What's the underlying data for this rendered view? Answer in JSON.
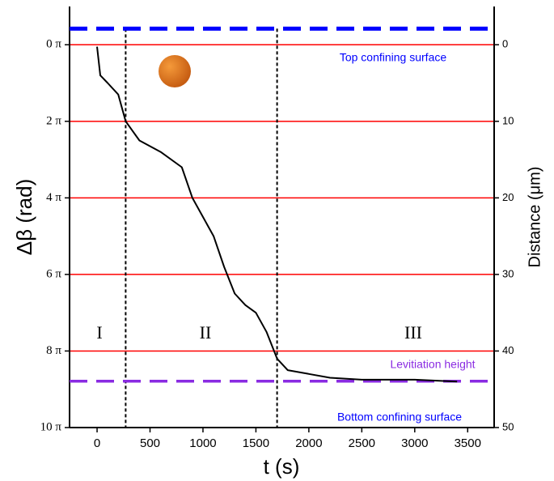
{
  "chart_data": {
    "type": "line",
    "x_label": "t (s)",
    "y_label": "Δβ (rad)",
    "y2_label": "Distance (μm)",
    "xlim": [
      -260,
      3750
    ],
    "xticks": [
      0,
      500,
      1000,
      1500,
      2000,
      2500,
      3000,
      3500
    ],
    "ylim": [
      -1,
      10
    ],
    "y_inverted": true,
    "yticks": [
      {
        "value": 0,
        "label": "0 π"
      },
      {
        "value": 2,
        "label": "2 π"
      },
      {
        "value": 4,
        "label": "4 π"
      },
      {
        "value": 6,
        "label": "6 π"
      },
      {
        "value": 8,
        "label": "8 π"
      },
      {
        "value": 10,
        "label": "10 π"
      }
    ],
    "y2lim": [
      -5,
      50
    ],
    "y2ticks": [
      0,
      10,
      20,
      30,
      40,
      50
    ],
    "grid": true,
    "grid_color": "#ff0000",
    "x": [
      0,
      30,
      100,
      200,
      270,
      400,
      600,
      800,
      900,
      1000,
      1100,
      1200,
      1300,
      1400,
      1500,
      1600,
      1700,
      1800,
      2000,
      2200,
      2500,
      3000,
      3400
    ],
    "series": [
      {
        "color": "#000000",
        "values": [
          0.05,
          0.8,
          1.0,
          1.3,
          2.0,
          2.5,
          2.8,
          3.2,
          4.0,
          4.5,
          5.0,
          5.8,
          6.5,
          6.8,
          7.0,
          7.5,
          8.2,
          8.5,
          8.6,
          8.7,
          8.75,
          8.75,
          8.8
        ]
      }
    ],
    "hlines": [
      {
        "value": -0.42,
        "color": "#0000ff"
      },
      {
        "value": 8.79,
        "color": "#8a2be2"
      }
    ],
    "vlines": [
      {
        "value": 270
      },
      {
        "value": 1700
      }
    ],
    "annotations": [
      {
        "text": "Top confining surface",
        "color": "#0000ff"
      },
      {
        "text": "Levitiation height",
        "color": "#8a2be2"
      },
      {
        "text": "Bottom confining surface",
        "color": "#0000ff"
      },
      {
        "text": "I",
        "color": "#000000"
      },
      {
        "text": "II",
        "color": "#000000"
      },
      {
        "text": "III",
        "color": "#000000"
      }
    ]
  }
}
